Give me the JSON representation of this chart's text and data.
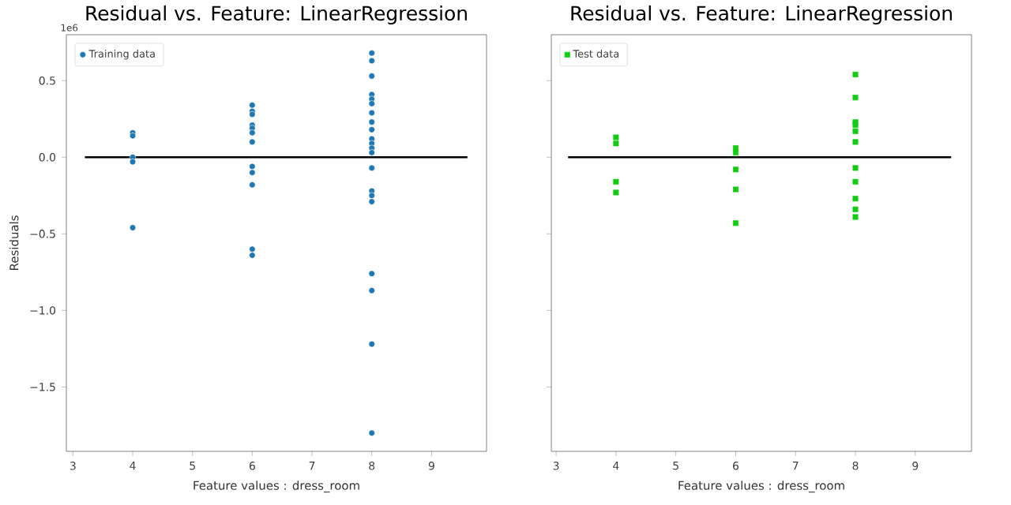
{
  "chart_data": [
    {
      "type": "scatter",
      "title": "Residual vs. Feature: LinearRegression",
      "xlabel": "Feature values : dress_room",
      "ylabel": "Residuals",
      "annotations": [
        "1e6"
      ],
      "xlim": [
        2.89,
        9.92
      ],
      "ylim": [
        -1.92,
        0.8
      ],
      "xticks": [
        3,
        4,
        5,
        6,
        7,
        8,
        9
      ],
      "yticks": [
        {
          "value": -1.5,
          "label": "−1.5"
        },
        {
          "value": -1,
          "label": "−1.0"
        },
        {
          "value": -0.5,
          "label": "−0.5"
        },
        {
          "value": 0,
          "label": "0.0"
        },
        {
          "value": 0.5,
          "label": "0.5"
        }
      ],
      "grid": false,
      "legend": "top left",
      "series": [
        {
          "name": "Training data",
          "color": "#1f77b4",
          "marker": "circle",
          "x": [
            4,
            4,
            4,
            4,
            4,
            6,
            6,
            6,
            6,
            6,
            6,
            6,
            6,
            6,
            6,
            6,
            6,
            8,
            8,
            8,
            8,
            8,
            8,
            8,
            8,
            8,
            8,
            8,
            8,
            8,
            8,
            8,
            8,
            8,
            8,
            8,
            8,
            8
          ],
          "values": [
            0.16,
            0.14,
            0,
            -0.03,
            -0.46,
            0.34,
            0.3,
            0.28,
            0.21,
            0.19,
            0.16,
            0.1,
            -0.06,
            -0.1,
            -0.18,
            -0.6,
            -0.64,
            0.68,
            0.63,
            0.53,
            0.41,
            0.38,
            0.35,
            0.29,
            0.23,
            0.18,
            0.12,
            0.09,
            0.06,
            0.03,
            -0.07,
            -0.22,
            -0.25,
            -0.29,
            -0.76,
            -0.87,
            -1.22,
            -1.8
          ]
        },
        {
          "type": "line",
          "color": "#000000",
          "marker": "none",
          "x": [
            3.2,
            9.6
          ],
          "values": [
            0,
            0
          ]
        }
      ]
    },
    {
      "type": "scatter",
      "title": "Residual vs. Feature: LinearRegression",
      "xlabel": "Feature values : dress_room",
      "xlim": [
        2.92,
        9.94
      ],
      "ylim": [
        -1.92,
        0.8
      ],
      "xticks": [
        3,
        4,
        5,
        6,
        7,
        8,
        9
      ],
      "yticks": [
        -1.5,
        -1,
        -0.5,
        0,
        0.5
      ],
      "tick_labels": "x",
      "grid": false,
      "legend": "top left",
      "series": [
        {
          "name": "Test data",
          "color": "#11cc11",
          "marker": "square",
          "x": [
            4,
            4,
            4,
            4,
            6,
            6,
            6,
            6,
            6,
            8,
            8,
            8,
            8,
            8,
            8,
            8,
            8,
            8,
            8,
            8
          ],
          "values": [
            0.13,
            0.09,
            -0.16,
            -0.23,
            0.06,
            0.03,
            -0.08,
            -0.21,
            -0.43,
            0.54,
            0.39,
            0.23,
            0.21,
            0.17,
            0.1,
            -0.07,
            -0.16,
            -0.27,
            -0.34,
            -0.39
          ]
        },
        {
          "type": "line",
          "color": "#000000",
          "marker": "none",
          "x": [
            3.2,
            9.6
          ],
          "values": [
            0,
            0
          ]
        }
      ]
    }
  ]
}
